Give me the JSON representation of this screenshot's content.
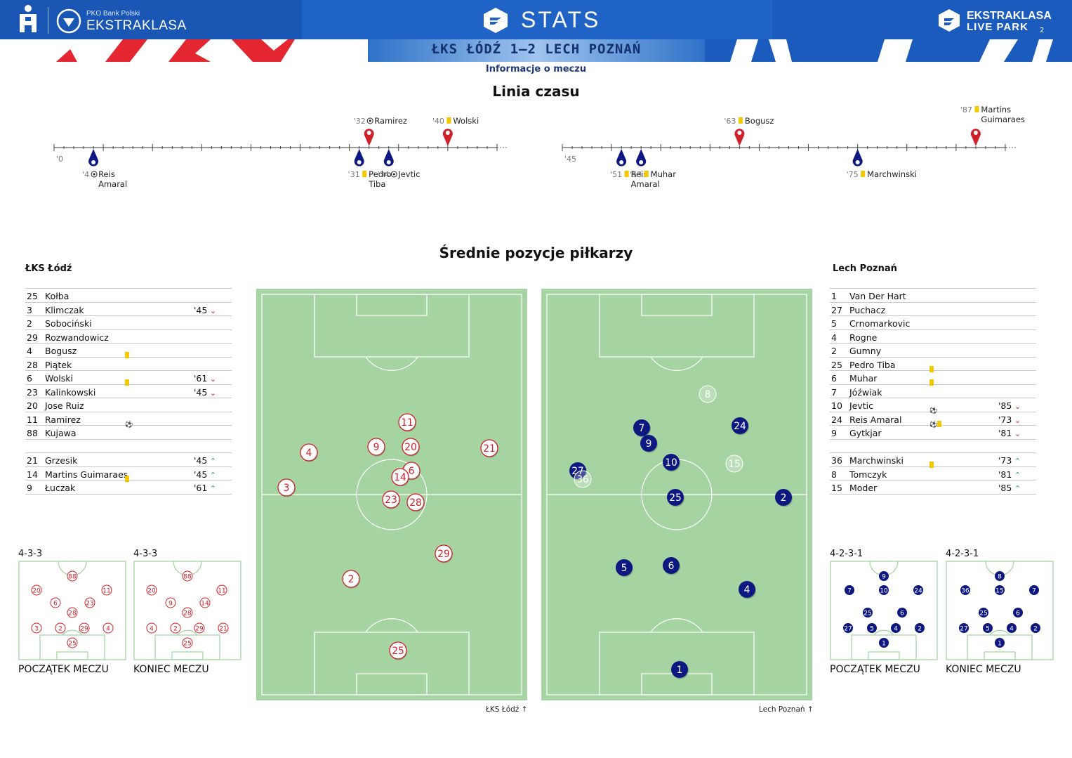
{
  "header": {
    "bank": "PKO Bank Polski",
    "league": "EKSTRAKLASA",
    "app_title": "STATS",
    "brand_line1": "EKSTRAKLASA",
    "brand_line2": "LIVE PARK",
    "page_number": "2",
    "colors": {
      "header_blue": "#1e5fc0",
      "home": "#d0202a",
      "away": "#0d1880",
      "pitch": "#a5d3a2"
    }
  },
  "match": {
    "score_line": "ŁKS ŁÓDŹ 1–2  LECH POZNAŃ",
    "info_label": "Informacje o meczu"
  },
  "timeline": {
    "title": "Linia czasu",
    "half1_start": "'0",
    "half2_start": "'45",
    "events_top": [
      {
        "minute": "'32",
        "icon": "ball-icon",
        "name": "Ramirez"
      },
      {
        "minute": "'40",
        "icon": "yellow-card-icon",
        "name": "Wolski"
      },
      {
        "minute": "'63",
        "icon": "yellow-card-icon",
        "name": "Bogusz"
      },
      {
        "minute": "'87",
        "icon": "yellow-card-icon",
        "name1": "Martins",
        "name2": "Guimaraes"
      }
    ],
    "events_bottom": [
      {
        "minute": "'4",
        "icon": "ball-icon",
        "name1": "Reis",
        "name2": "Amaral"
      },
      {
        "minute": "'31",
        "icon": "yellow-card-icon",
        "name1": "Pedro",
        "name2": "Tiba"
      },
      {
        "minute": "'34",
        "icon": "ball-icon",
        "name": "Jevtic"
      },
      {
        "minute": "'51",
        "icon": "yellow-card-icon",
        "name1": "Reis",
        "name2": "Amaral"
      },
      {
        "minute": "'53",
        "icon": "yellow-card-icon",
        "name": "Muhar"
      },
      {
        "minute": "'75",
        "icon": "yellow-card-icon",
        "name": "Marchwinski"
      }
    ]
  },
  "positions": {
    "title": "Średnie pozycje piłkarzy",
    "home_pitch_label": "ŁKS Łódź",
    "away_pitch_label": "Lech Poznań"
  },
  "home": {
    "name": "ŁKS Łódź",
    "starters": [
      {
        "no": "25",
        "name": "Kołba"
      },
      {
        "no": "3",
        "name": "Klimczak",
        "min": "'45",
        "sub": "off"
      },
      {
        "no": "2",
        "name": "Sobociński"
      },
      {
        "no": "29",
        "name": "Rozwandowicz"
      },
      {
        "no": "4",
        "name": "Bogusz",
        "card": true
      },
      {
        "no": "28",
        "name": "Piątek"
      },
      {
        "no": "6",
        "name": "Wolski",
        "card": true,
        "min": "'61",
        "sub": "off"
      },
      {
        "no": "23",
        "name": "Kalinkowski",
        "min": "'45",
        "sub": "off"
      },
      {
        "no": "20",
        "name": "Jose Ruiz"
      },
      {
        "no": "11",
        "name": "Ramirez",
        "goal": true
      },
      {
        "no": "88",
        "name": "Kujawa"
      }
    ],
    "subs": [
      {
        "no": "21",
        "name": "Grzesik",
        "min": "'45",
        "sub": "on"
      },
      {
        "no": "14",
        "name": "Martins Guimaraes",
        "card": true,
        "min": "'45",
        "sub": "on"
      },
      {
        "no": "9",
        "name": "Łuczak",
        "min": "'61",
        "sub": "on"
      }
    ],
    "formation_start": "4-3-3",
    "formation_end": "4-3-3",
    "start_caption": "POCZĄTEK MECZU",
    "end_caption": "KONIEC MECZU",
    "form_start_nums": [
      "88",
      "20",
      "11",
      "6",
      "23",
      "28",
      "3",
      "2",
      "29",
      "4",
      "25"
    ],
    "form_end_nums": [
      "88",
      "20",
      "11",
      "9",
      "14",
      "28",
      "4",
      "2",
      "29",
      "21",
      "25"
    ],
    "avg_nums": [
      "11",
      "9",
      "20",
      "21",
      "4",
      "6",
      "14",
      "3",
      "23",
      "28",
      "29",
      "2",
      "25"
    ]
  },
  "away": {
    "name": "Lech Poznań",
    "starters": [
      {
        "no": "1",
        "name": "Van Der Hart"
      },
      {
        "no": "27",
        "name": "Puchacz"
      },
      {
        "no": "5",
        "name": "Crnomarkovic"
      },
      {
        "no": "4",
        "name": "Rogne"
      },
      {
        "no": "2",
        "name": "Gumny"
      },
      {
        "no": "25",
        "name": "Pedro Tiba",
        "card": true
      },
      {
        "no": "6",
        "name": "Muhar",
        "card": true
      },
      {
        "no": "7",
        "name": "Jóźwiak"
      },
      {
        "no": "10",
        "name": "Jevtic",
        "goal": true,
        "min": "'85",
        "sub": "off"
      },
      {
        "no": "24",
        "name": "Reis Amaral",
        "goal": true,
        "card": true,
        "min": "'73",
        "sub": "off"
      },
      {
        "no": "9",
        "name": "Gytkjar",
        "min": "'81",
        "sub": "off"
      }
    ],
    "subs": [
      {
        "no": "36",
        "name": "Marchwinski",
        "card": true,
        "min": "'73",
        "sub": "on"
      },
      {
        "no": "8",
        "name": "Tomczyk",
        "min": "'81",
        "sub": "on"
      },
      {
        "no": "15",
        "name": "Moder",
        "min": "'85",
        "sub": "on"
      }
    ],
    "formation_start": "4-2-3-1",
    "formation_end": "4-2-3-1",
    "start_caption": "POCZĄTEK MECZU",
    "end_caption": "KONIEC MECZU",
    "form_start_nums": [
      "9",
      "7",
      "10",
      "24",
      "25",
      "6",
      "27",
      "5",
      "4",
      "2",
      "1"
    ],
    "form_end_nums": [
      "8",
      "36",
      "15",
      "7",
      "25",
      "6",
      "27",
      "5",
      "4",
      "2",
      "1"
    ],
    "avg_nums": [
      "8",
      "7",
      "24",
      "9",
      "10",
      "15",
      "27",
      "36",
      "25",
      "2",
      "5",
      "6",
      "4",
      "1"
    ]
  }
}
